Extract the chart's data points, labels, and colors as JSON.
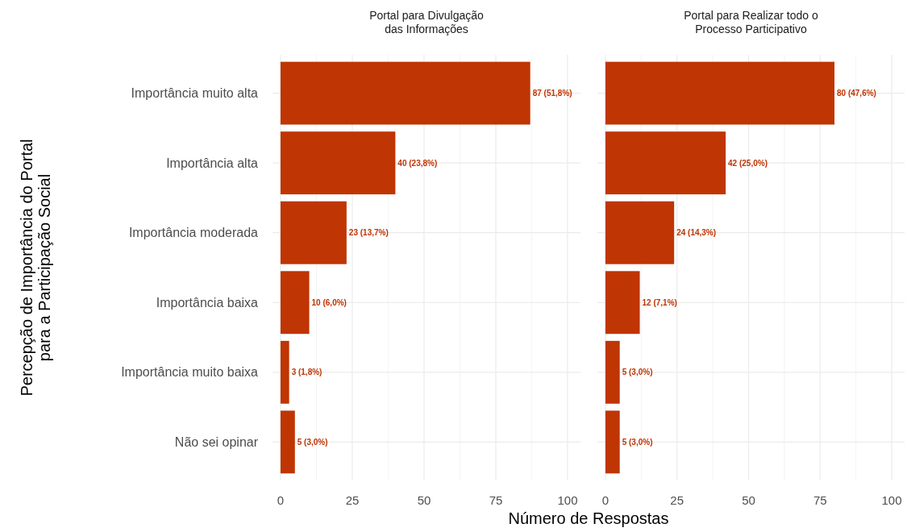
{
  "chart_data": [
    {
      "type": "bar",
      "orientation": "horizontal",
      "title": "Portal para Divulgação\ndas Informações",
      "ylabel": "Percepção de Importância do Portal\npara a Participação Social",
      "xlabel": "Número de Respostas",
      "categories": [
        "Importância muito alta",
        "Importância alta",
        "Importância moderada",
        "Importância baixa",
        "Importância muito baixa",
        "Não sei opinar"
      ],
      "values": [
        87,
        40,
        23,
        10,
        3,
        5
      ],
      "value_labels": [
        "87 (51,8%)",
        "40 (23,8%)",
        "23 (13,7%)",
        "10 (6,0%)",
        "3 (1,8%)",
        "5 (3,0%)"
      ],
      "color": "#bf3503",
      "xlim": [
        -2.8,
        104.5
      ],
      "xticks": [
        0,
        25,
        50,
        75,
        100
      ],
      "grid": true
    },
    {
      "type": "bar",
      "orientation": "horizontal",
      "title": "Portal para Realizar todo o\nProcesso Participativo",
      "categories": [
        null,
        null,
        null,
        null,
        null,
        null
      ],
      "values": [
        80,
        42,
        24,
        12,
        5,
        5
      ],
      "value_labels": [
        "80 (47,6%)",
        "42 (25,0%)",
        "24 (14,3%)",
        "12 (7,1%)",
        "5 (3,0%)",
        "5 (3,0%)"
      ],
      "color": "#bf3503",
      "xlim": [
        -2.8,
        104.5
      ],
      "xticks": [
        0,
        25,
        50,
        75,
        100
      ],
      "grid": true,
      "tick_labels": "x"
    }
  ]
}
